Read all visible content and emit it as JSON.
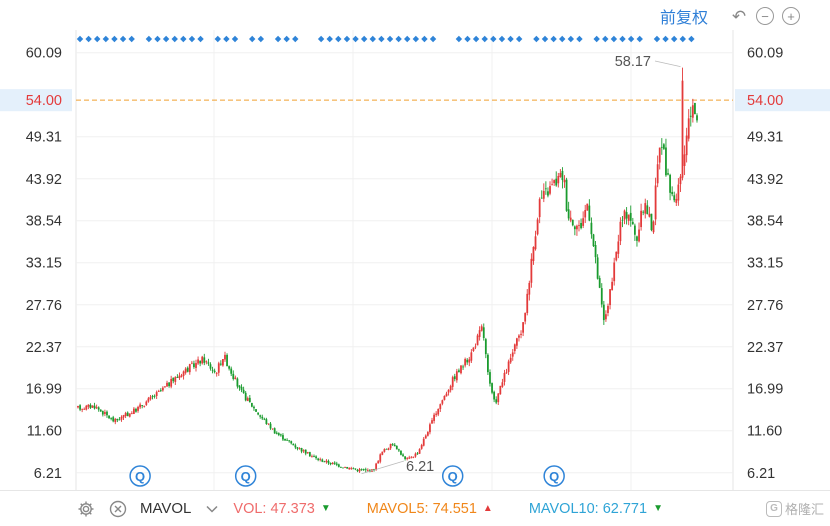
{
  "toolbar": {
    "adjust_label": "前复权",
    "undo_icon": "undo-icon",
    "zoom_out_icon": "zoom-out-icon",
    "zoom_in_icon": "zoom-in-icon"
  },
  "chart_data": {
    "type": "candlestick",
    "title": "",
    "ylim": [
      4.0,
      63.0
    ],
    "y_ticks": [
      "60.09",
      "54.00",
      "49.31",
      "43.92",
      "38.54",
      "33.15",
      "27.76",
      "22.37",
      "16.99",
      "11.60",
      "6.21"
    ],
    "y_tick_values": [
      60.09,
      54.0,
      49.31,
      43.92,
      38.54,
      33.15,
      27.76,
      22.37,
      16.99,
      11.6,
      6.21
    ],
    "current_price": "54.00",
    "current_price_value": 54.0,
    "max_label": "58.17",
    "max_value": 58.17,
    "min_label": "6.21",
    "min_value": 6.21,
    "candle_count": 300,
    "trend_anchors": [
      [
        0,
        14.5
      ],
      [
        8,
        14.8
      ],
      [
        18,
        12.8
      ],
      [
        28,
        14.2
      ],
      [
        40,
        16.5
      ],
      [
        52,
        19.2
      ],
      [
        62,
        20.8
      ],
      [
        68,
        19.0
      ],
      [
        72,
        21.3
      ],
      [
        80,
        16.8
      ],
      [
        90,
        13.5
      ],
      [
        98,
        11.3
      ],
      [
        108,
        9.5
      ],
      [
        118,
        8.0
      ],
      [
        128,
        7.2
      ],
      [
        138,
        6.6
      ],
      [
        146,
        6.5
      ],
      [
        150,
        8.8
      ],
      [
        156,
        10.0
      ],
      [
        162,
        7.8
      ],
      [
        168,
        8.8
      ],
      [
        178,
        14.5
      ],
      [
        186,
        18.5
      ],
      [
        194,
        21.3
      ],
      [
        200,
        25.0
      ],
      [
        203,
        18.0
      ],
      [
        206,
        15.0
      ],
      [
        214,
        21.0
      ],
      [
        220,
        25.0
      ],
      [
        224,
        33.0
      ],
      [
        228,
        41.0
      ],
      [
        236,
        43.5
      ],
      [
        240,
        44.5
      ],
      [
        242,
        39.5
      ],
      [
        248,
        37.5
      ],
      [
        252,
        41.0
      ],
      [
        256,
        33.0
      ],
      [
        260,
        25.5
      ],
      [
        264,
        30.5
      ],
      [
        268,
        38.0
      ],
      [
        272,
        40.0
      ],
      [
        276,
        36.0
      ],
      [
        280,
        41.0
      ],
      [
        284,
        37.5
      ],
      [
        288,
        50.0
      ],
      [
        292,
        43.0
      ],
      [
        296,
        41.0
      ],
      [
        300,
        47.5
      ],
      [
        304,
        54.0
      ],
      [
        306,
        51.5
      ]
    ],
    "markers": {
      "top_diamonds_pattern": "1111111011111110111011011100111111111111110011111111011111101111110111110",
      "bottom_badges_x_index": [
        31,
        83,
        185,
        235
      ],
      "bottom_badge_glyph": "Q"
    }
  },
  "indicators": {
    "name": "MAVOL",
    "vol_label": "VOL: ",
    "vol_value": "47.373",
    "vol_dir": "down",
    "ma5_label": "MAVOL5: ",
    "ma5_value": "74.551",
    "ma5_dir": "up",
    "ma10_label": "MAVOL10: ",
    "ma10_value": "62.771",
    "ma10_dir": "down",
    "colors": {
      "vol": "#ef6c6c",
      "ma5": "#f0871a",
      "ma10": "#2fa4d6",
      "up": "#e33a3a",
      "down": "#1a9b2e"
    }
  },
  "watermark": {
    "text": "格隆汇"
  }
}
